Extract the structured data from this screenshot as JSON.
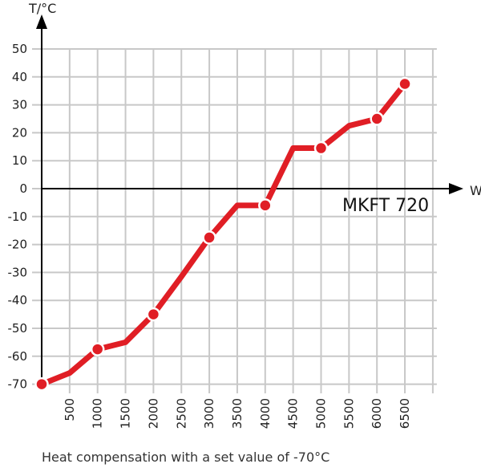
{
  "chart_data": {
    "type": "line",
    "title": "MKFT 720",
    "caption": "Heat compensation with a set value of -70°C",
    "xlabel": "W",
    "ylabel": "T/°C",
    "xlim": [
      0,
      7000
    ],
    "ylim": [
      -70,
      50
    ],
    "grid": true,
    "x_ticks": [
      "500",
      "1000",
      "1500",
      "2000",
      "2500",
      "3000",
      "3500",
      "4000",
      "4500",
      "5000",
      "5500",
      "6000",
      "6500"
    ],
    "y_ticks": [
      "50",
      "40",
      "30",
      "20",
      "10",
      "0",
      "-10",
      "-20",
      "-30",
      "-40",
      "-50",
      "-60",
      "-70"
    ],
    "series": [
      {
        "color": "#e01e25",
        "x": [
          0,
          500,
          1000,
          1500,
          2000,
          2500,
          3000,
          3500,
          4000,
          4500,
          5000,
          5500,
          6000,
          6500
        ],
        "y": [
          -70,
          -66,
          -57.5,
          -55,
          -45,
          -31.5,
          -17.5,
          -6,
          -6,
          14.5,
          14.5,
          22.5,
          25,
          37.5
        ],
        "markers": [
          true,
          false,
          true,
          false,
          true,
          false,
          true,
          false,
          true,
          false,
          true,
          false,
          true,
          true
        ]
      }
    ]
  }
}
